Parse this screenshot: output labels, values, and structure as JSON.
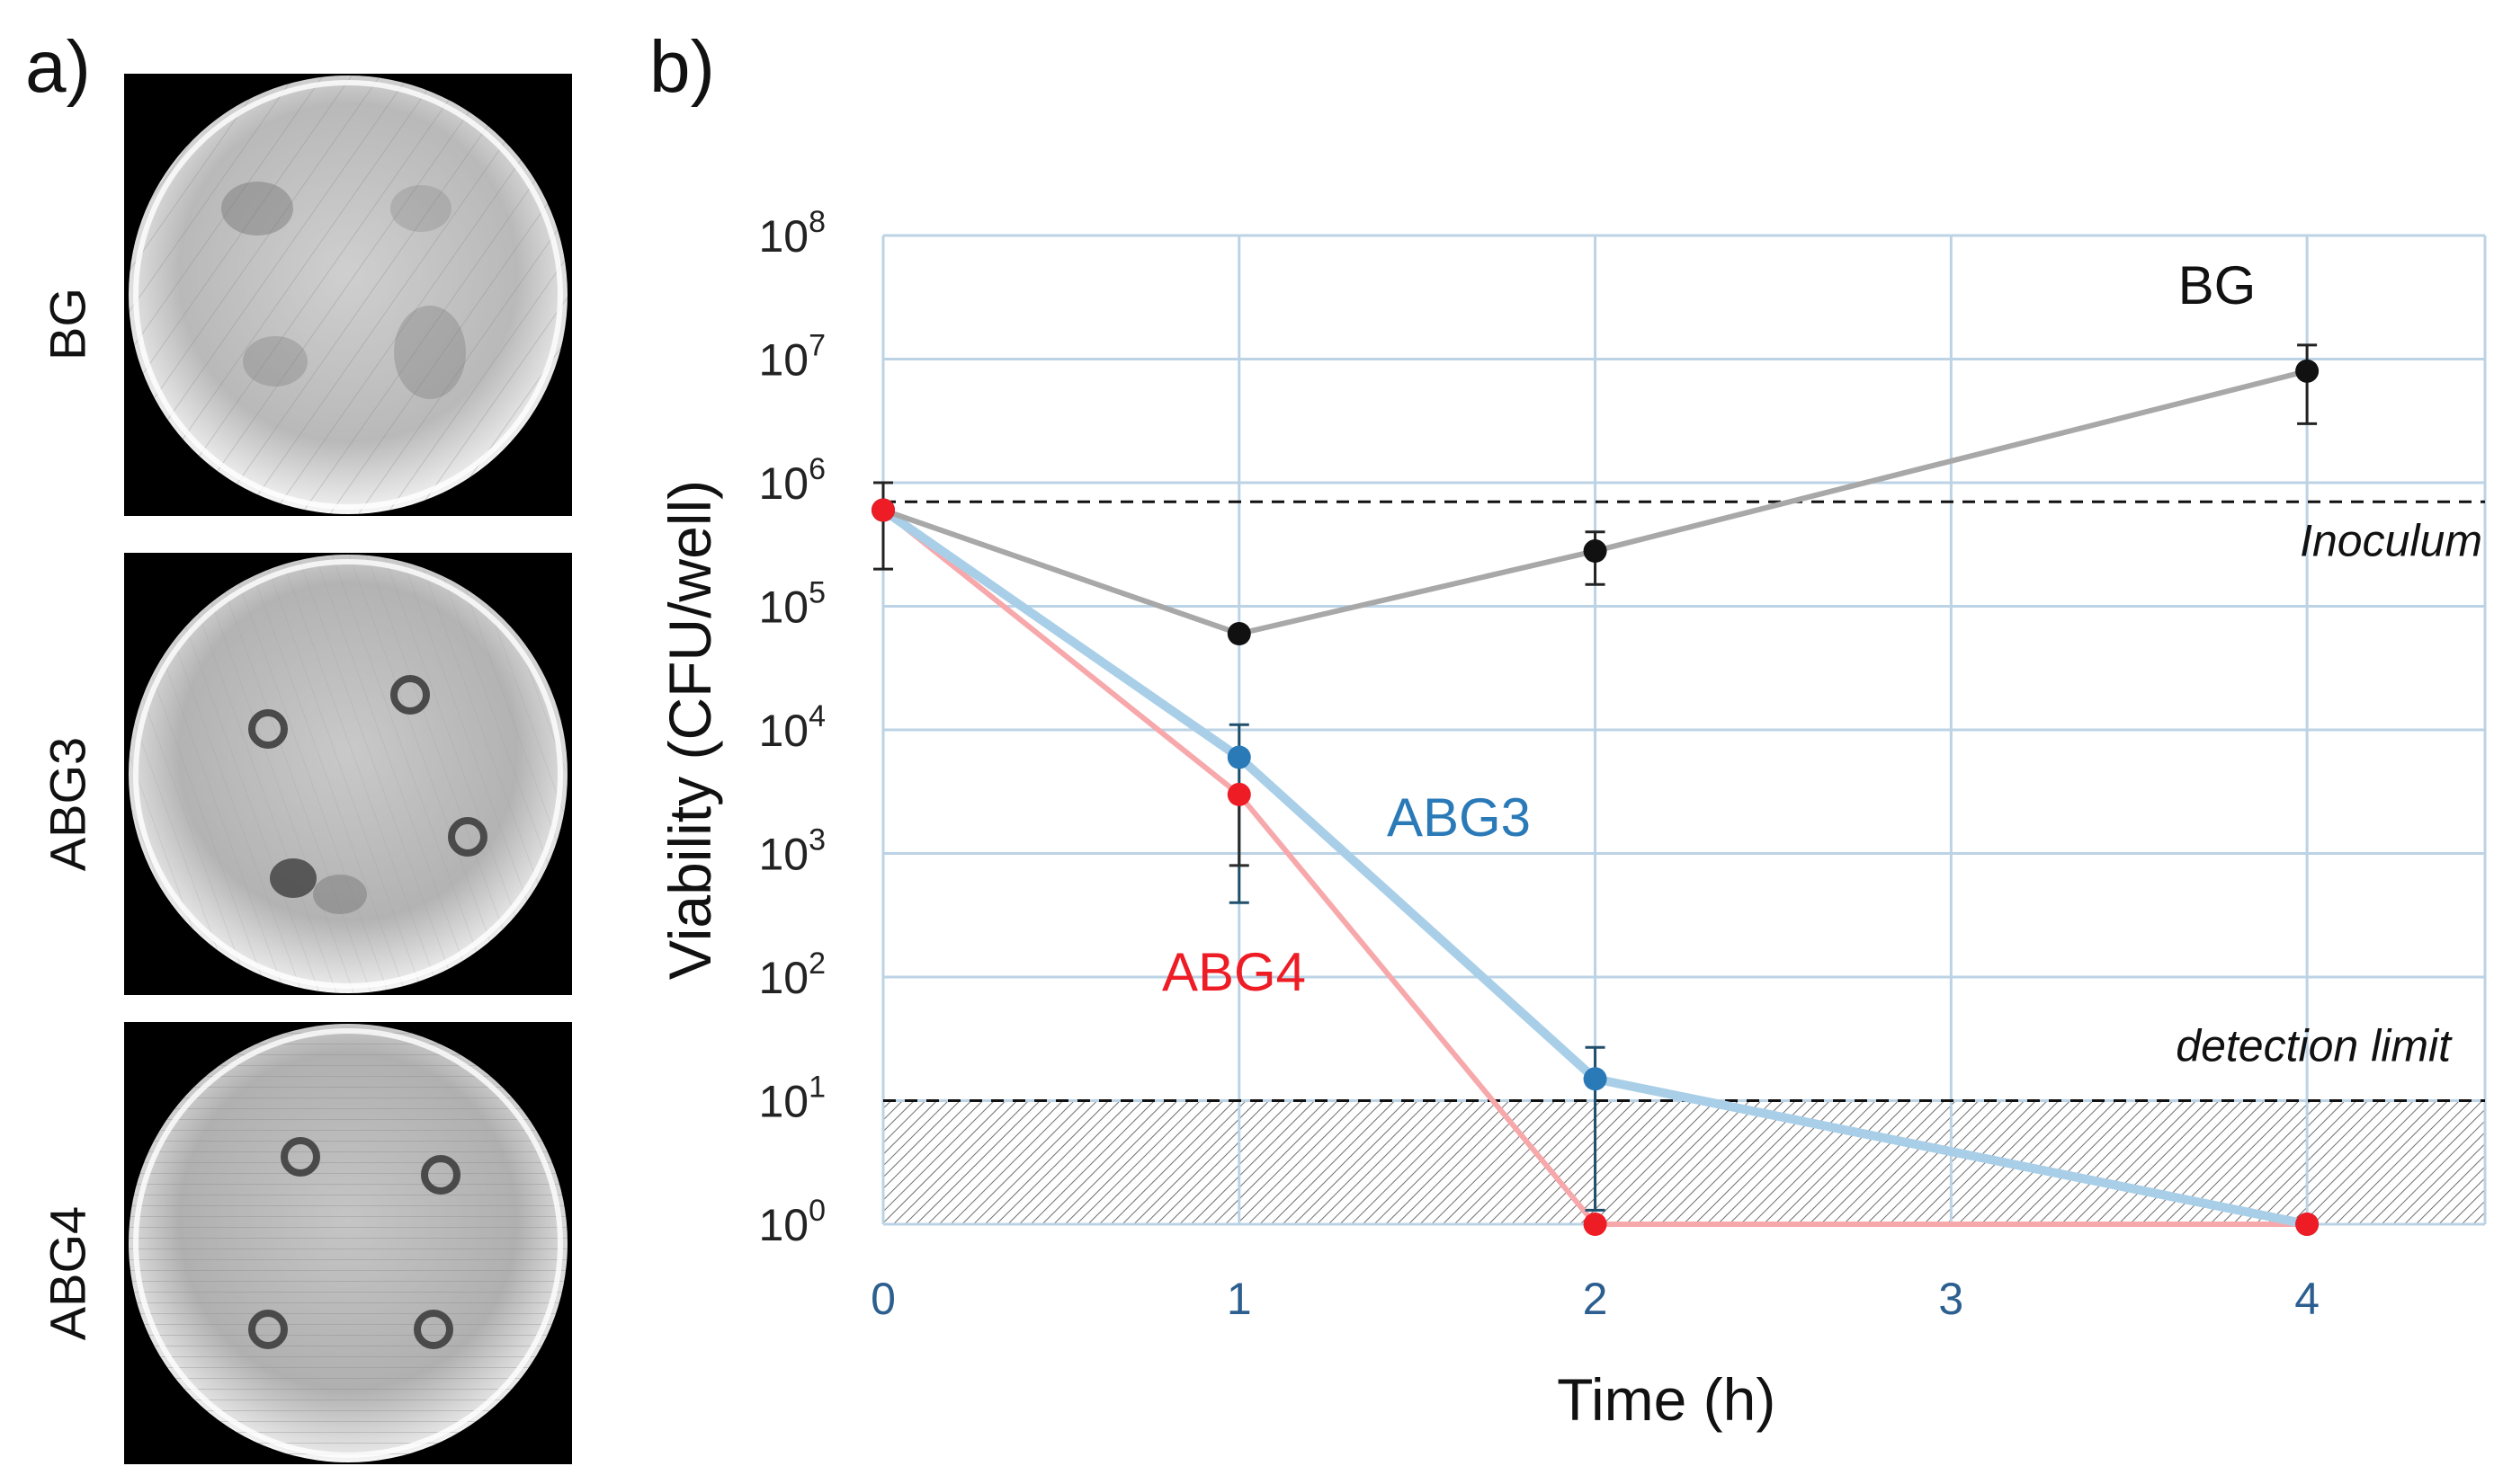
{
  "panels": {
    "a_label": "a)",
    "b_label": "b)"
  },
  "plates": [
    {
      "label": "BG"
    },
    {
      "label": "ABG3"
    },
    {
      "label": "ABG4"
    }
  ],
  "chart_data": {
    "type": "line",
    "xlabel": "Time (h)",
    "ylabel": "Viability (CFU/well)",
    "yscale": "log",
    "xlim": [
      0,
      4.5
    ],
    "ylim": [
      1,
      100000000
    ],
    "x_ticks": [
      "0",
      "1",
      "2",
      "3",
      "4"
    ],
    "y_ticks": [
      {
        "base": "10",
        "exp": "0"
      },
      {
        "base": "10",
        "exp": "1"
      },
      {
        "base": "10",
        "exp": "2"
      },
      {
        "base": "10",
        "exp": "3"
      },
      {
        "base": "10",
        "exp": "4"
      },
      {
        "base": "10",
        "exp": "5"
      },
      {
        "base": "10",
        "exp": "6"
      },
      {
        "base": "10",
        "exp": "7"
      },
      {
        "base": "10",
        "exp": "8"
      }
    ],
    "grid": true,
    "series": [
      {
        "name": "BG",
        "color": "#111111",
        "line_color": "#a8a8a8",
        "x": [
          0,
          1,
          2,
          4
        ],
        "y": [
          600000,
          60000,
          280000,
          8000000
        ],
        "err_low": [
          200000,
          null,
          150000,
          3000000
        ],
        "err_high": [
          1000000,
          null,
          400000,
          13000000
        ]
      },
      {
        "name": "ABG3",
        "color": "#2a7ab8",
        "line_color": "#a9cfe8",
        "x": [
          0,
          1,
          2,
          4
        ],
        "y": [
          600000,
          6000,
          15,
          1
        ],
        "err_low": [
          null,
          400,
          1.3,
          null
        ],
        "err_high": [
          null,
          11000,
          27,
          null
        ]
      },
      {
        "name": "ABG4",
        "color": "#ee1c25",
        "line_color": "#f7a8ab",
        "x": [
          0,
          1,
          2,
          4
        ],
        "y": [
          600000,
          3000,
          1,
          1
        ],
        "err_low": [
          null,
          800,
          null,
          null
        ],
        "err_high": [
          null,
          3000,
          null,
          null
        ]
      }
    ],
    "reference_lines": [
      {
        "name": "Inoculum",
        "y": 700000
      },
      {
        "name": "detection limit",
        "y": 10
      }
    ],
    "annotations": {
      "BG": "BG",
      "ABG3": "ABG3",
      "ABG4": "ABG4",
      "inoculum": "Inoculum",
      "detection": "detection limit"
    }
  }
}
